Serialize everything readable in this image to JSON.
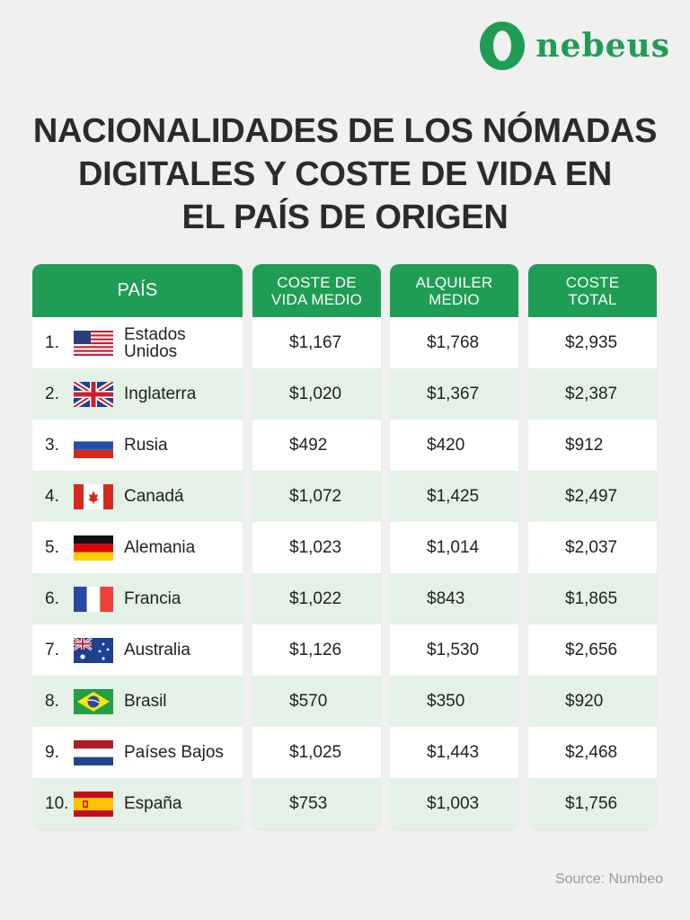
{
  "brand": {
    "name": "nebeus",
    "logo_icon": "nebeus-logo-icon",
    "color": "#1f9d55"
  },
  "title": {
    "lines": [
      "NACIONALIDADES DE LOS NÓMADAS",
      "DIGITALES Y COSTE DE VIDA EN",
      "EL PAÍS DE ORIGEN"
    ]
  },
  "table": {
    "headers": {
      "country": "PAÍS",
      "cost_of_living": [
        "COSTE DE",
        "VIDA MEDIO"
      ],
      "rent": [
        "ALQUILER",
        "MEDIO"
      ],
      "total": [
        "COSTE",
        "TOTAL"
      ]
    },
    "rows": [
      {
        "rank": "1.",
        "country": [
          "Estados",
          "Unidos"
        ],
        "flag": "usa-flag-icon",
        "cost": "$1,167",
        "rent": "$1,768",
        "total": "$2,935"
      },
      {
        "rank": "2.",
        "country": [
          "Inglaterra"
        ],
        "flag": "uk-flag-icon",
        "cost": "$1,020",
        "rent": "$1,367",
        "total": "$2,387"
      },
      {
        "rank": "3.",
        "country": [
          "Rusia"
        ],
        "flag": "russia-flag-icon",
        "cost": "$492",
        "rent": "$420",
        "total": "$912"
      },
      {
        "rank": "4.",
        "country": [
          "Canadá"
        ],
        "flag": "canada-flag-icon",
        "cost": "$1,072",
        "rent": "$1,425",
        "total": "$2,497"
      },
      {
        "rank": "5.",
        "country": [
          "Alemania"
        ],
        "flag": "germany-flag-icon",
        "cost": "$1,023",
        "rent": "$1,014",
        "total": "$2,037"
      },
      {
        "rank": "6.",
        "country": [
          "Francia"
        ],
        "flag": "france-flag-icon",
        "cost": "$1,022",
        "rent": "$843",
        "total": "$1,865"
      },
      {
        "rank": "7.",
        "country": [
          "Australia"
        ],
        "flag": "australia-flag-icon",
        "cost": "$1,126",
        "rent": "$1,530",
        "total": "$2,656"
      },
      {
        "rank": "8.",
        "country": [
          "Brasil"
        ],
        "flag": "brazil-flag-icon",
        "cost": "$570",
        "rent": "$350",
        "total": "$920"
      },
      {
        "rank": "9.",
        "country": [
          "Países Bajos"
        ],
        "flag": "netherlands-flag-icon",
        "cost": "$1,025",
        "rent": "$1,443",
        "total": "$2,468"
      },
      {
        "rank": "10.",
        "country": [
          "España"
        ],
        "flag": "spain-flag-icon",
        "cost": "$753",
        "rent": "$1,003",
        "total": "$1,756"
      }
    ]
  },
  "colors": {
    "header_green": "#1f9d55",
    "row_alt": "#e3f1e7",
    "background": "#f0f0f0"
  },
  "source": "Source: Numbeo"
}
